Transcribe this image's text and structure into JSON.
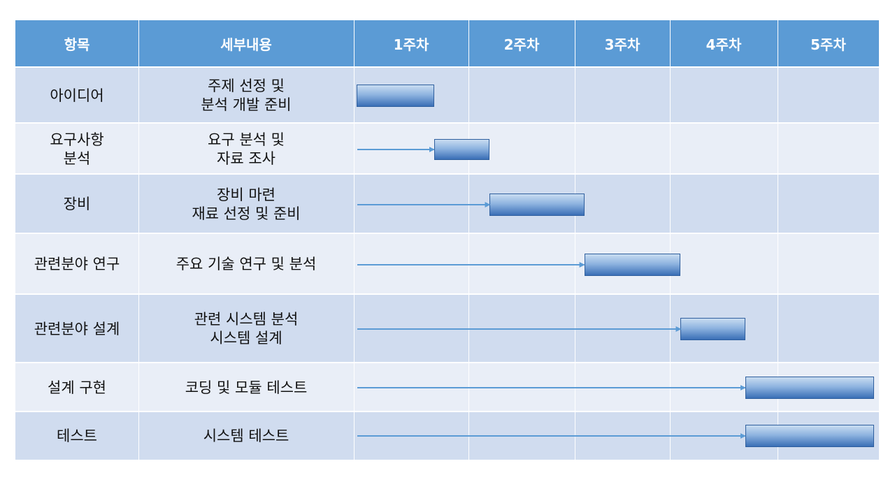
{
  "header": {
    "item": "항목",
    "detail": "세부내용",
    "weeks": [
      "1주차",
      "2주차",
      "3주차",
      "4주차",
      "5주차"
    ]
  },
  "rows": [
    {
      "item": [
        "아이디어"
      ],
      "detail": [
        "주제 선정 및",
        "분석 개발 준비"
      ]
    },
    {
      "item": [
        "요구사항",
        "분석"
      ],
      "detail": [
        "요구 분석 및",
        "자료 조사"
      ]
    },
    {
      "item": [
        "장비"
      ],
      "detail": [
        "장비 마련",
        "재료 선정 및 준비"
      ]
    },
    {
      "item": [
        "관련분야 연구"
      ],
      "detail": [
        "주요 기술 연구 및 분석"
      ]
    },
    {
      "item": [
        "관련분야 설계"
      ],
      "detail": [
        "관련 시스템 분석",
        "시스템 설계"
      ]
    },
    {
      "item": [
        "설계 구현"
      ],
      "detail": [
        "코딩 및 모듈 테스트"
      ]
    },
    {
      "item": [
        "테스트"
      ],
      "detail": [
        "시스템 테스트"
      ]
    }
  ],
  "schedule": [
    {
      "start_week": 1.0,
      "end_week": 1.7
    },
    {
      "start_week": 1.7,
      "end_week": 2.2
    },
    {
      "start_week": 2.2,
      "end_week": 3.1
    },
    {
      "start_week": 3.1,
      "end_week": 4.1
    },
    {
      "start_week": 4.1,
      "end_week": 4.7
    },
    {
      "start_week": 4.7,
      "end_week": 5.95
    },
    {
      "start_week": 4.7,
      "end_week": 5.95
    }
  ],
  "colors": {
    "header": "#5b9bd5",
    "row_odd": "#d0dcef",
    "row_even": "#e9eef7",
    "arrow": "#5b9bd5",
    "bar_top": "#c9dcf1",
    "bar_bottom": "#3a6fb6"
  }
}
